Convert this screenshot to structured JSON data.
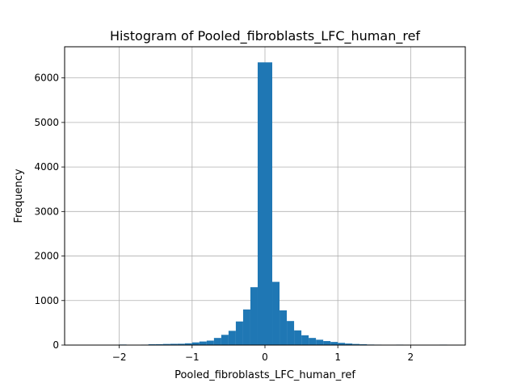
{
  "chart_data": {
    "type": "bar",
    "title": "Histogram of Pooled_fibroblasts_LFC_human_ref",
    "xlabel": "Pooled_fibroblasts_LFC_human_ref",
    "ylabel": "Frequency",
    "xlim": [
      -2.75,
      2.75
    ],
    "ylim": [
      0,
      6700
    ],
    "grid": true,
    "bar_color": "#1f77b4",
    "bin_edges": [
      -2.5,
      -2.4,
      -2.3,
      -2.2,
      -2.1,
      -2.0,
      -1.9,
      -1.8,
      -1.7,
      -1.6,
      -1.5,
      -1.4,
      -1.3,
      -1.2,
      -1.1,
      -1.0,
      -0.9,
      -0.8,
      -0.7,
      -0.6,
      -0.5,
      -0.4,
      -0.3,
      -0.2,
      -0.1,
      0.0,
      0.1,
      0.2,
      0.3,
      0.4,
      0.5,
      0.6,
      0.7,
      0.8,
      0.9,
      1.0,
      1.1,
      1.2,
      1.3,
      1.4,
      1.5,
      1.6,
      1.7,
      1.8,
      1.9,
      2.0,
      2.1,
      2.2,
      2.3,
      2.4,
      2.5
    ],
    "values": [
      1,
      1,
      1,
      2,
      5,
      12,
      8,
      5,
      10,
      18,
      20,
      25,
      28,
      30,
      40,
      60,
      80,
      100,
      160,
      230,
      320,
      530,
      800,
      1300,
      6350,
      6350,
      1420,
      780,
      540,
      330,
      220,
      160,
      120,
      90,
      70,
      50,
      35,
      25,
      18,
      12,
      10,
      8,
      5,
      10,
      4,
      2,
      1,
      1,
      1,
      10
    ],
    "x_ticks": [
      -2,
      -1,
      0,
      1,
      2
    ],
    "x_tick_labels": [
      "−2",
      "−1",
      "0",
      "1",
      "2"
    ],
    "y_ticks": [
      0,
      1000,
      2000,
      3000,
      4000,
      5000,
      6000
    ],
    "y_tick_labels": [
      "0",
      "1000",
      "2000",
      "3000",
      "4000",
      "5000",
      "6000"
    ]
  }
}
